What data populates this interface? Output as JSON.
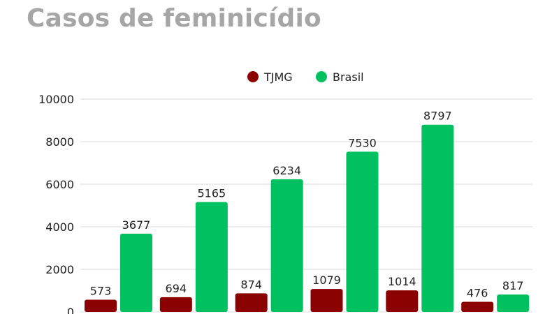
{
  "title": "Casos de feminicídio",
  "colors": {
    "tjmg": "#8b0000",
    "brasil": "#00c060",
    "grid": "#d9d9d9"
  },
  "chart_data": {
    "type": "bar",
    "title": "Casos de feminicídio",
    "xlabel": "",
    "ylabel": "",
    "ylim": [
      0,
      10000
    ],
    "yticks": [
      0,
      2000,
      4000,
      6000,
      8000,
      10000
    ],
    "grid": true,
    "legend_position": "top-center",
    "categories": [
      "",
      "",
      "",
      "",
      "",
      ""
    ],
    "series": [
      {
        "name": "TJMG",
        "color": "#8b0000",
        "values": [
          573,
          694,
          874,
          1079,
          1014,
          476
        ]
      },
      {
        "name": "Brasil",
        "color": "#00c060",
        "values": [
          3677,
          5165,
          6234,
          7530,
          8797,
          817
        ]
      }
    ]
  }
}
